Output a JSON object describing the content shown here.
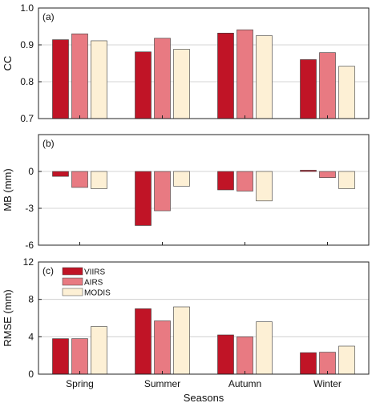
{
  "chart_data": [
    {
      "type": "bar",
      "panel_label": "(a)",
      "ylabel": "CC",
      "ylim": [
        0.7,
        1.0
      ],
      "yticks": [
        "0.7",
        "0.8",
        "0.9",
        "1.0"
      ],
      "ytick_values": [
        0.7,
        0.8,
        0.9,
        1.0
      ],
      "grid": true,
      "categories": [
        "Spring",
        "Summer",
        "Autumn",
        "Winter"
      ],
      "series": [
        {
          "name": "VIIRS",
          "values": [
            0.914,
            0.881,
            0.932,
            0.86
          ]
        },
        {
          "name": "AIRS",
          "values": [
            0.93,
            0.918,
            0.941,
            0.879
          ]
        },
        {
          "name": "MODIS",
          "values": [
            0.911,
            0.888,
            0.925,
            0.842
          ]
        }
      ]
    },
    {
      "type": "bar",
      "panel_label": "(b)",
      "ylabel": "MB (mm)",
      "ylim": [
        -6,
        3
      ],
      "yticks": [
        "-6",
        "-3",
        "0"
      ],
      "ytick_values": [
        -6,
        -3,
        0
      ],
      "grid": true,
      "categories": [
        "Spring",
        "Summer",
        "Autumn",
        "Winter"
      ],
      "series": [
        {
          "name": "VIIRS",
          "values": [
            -0.4,
            -4.4,
            -1.5,
            0.1
          ]
        },
        {
          "name": "AIRS",
          "values": [
            -1.3,
            -3.2,
            -1.6,
            -0.5
          ]
        },
        {
          "name": "MODIS",
          "values": [
            -1.4,
            -1.2,
            -2.4,
            -1.4
          ]
        }
      ]
    },
    {
      "type": "bar",
      "panel_label": "(c)",
      "ylabel": "RMSE (mm)",
      "xlabel": "Seasons",
      "ylim": [
        0,
        12
      ],
      "yticks": [
        "0",
        "4",
        "8",
        "12"
      ],
      "ytick_values": [
        0,
        4,
        8,
        12
      ],
      "grid": true,
      "legend": "top-left",
      "categories": [
        "Spring",
        "Summer",
        "Autumn",
        "Winter"
      ],
      "series": [
        {
          "name": "VIIRS",
          "values": [
            3.8,
            7.0,
            4.2,
            2.3
          ]
        },
        {
          "name": "AIRS",
          "values": [
            3.8,
            5.7,
            4.0,
            2.35
          ]
        },
        {
          "name": "MODIS",
          "values": [
            5.1,
            7.2,
            5.6,
            3.0
          ]
        }
      ]
    }
  ],
  "colors": {
    "VIIRS": "#c01426",
    "AIRS": "#e87a82",
    "MODIS": "#fdf0d5",
    "grid": "#c8c8c8",
    "axis": "#222222"
  }
}
